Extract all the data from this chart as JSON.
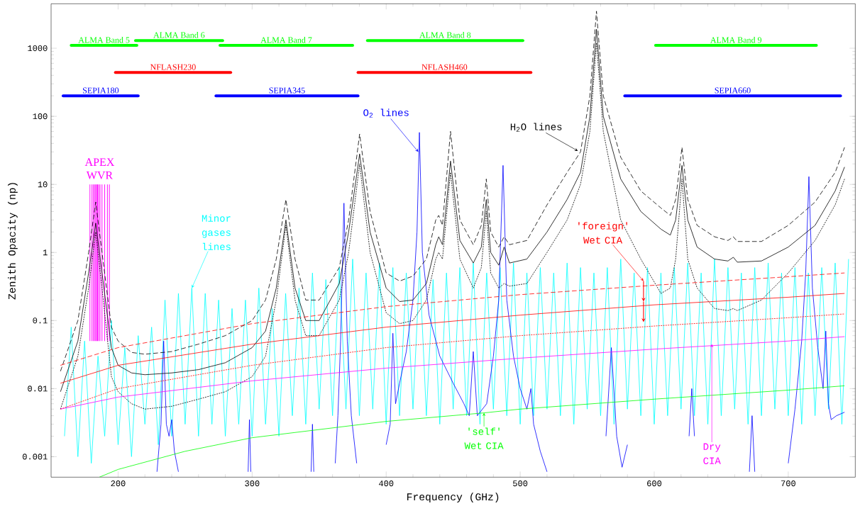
{
  "chart_data": {
    "type": "line",
    "xlabel": "Frequency (GHz)",
    "ylabel": "Zenith Opacity (np)",
    "log": true,
    "xlim": [
      150,
      750
    ],
    "ylim": [
      0.0005,
      4500
    ],
    "xticks": [
      200,
      300,
      400,
      500,
      600,
      700
    ],
    "yticks": [
      0.001,
      0.01,
      0.1,
      1,
      10,
      100,
      1000
    ],
    "x": [
      157,
      170,
      178,
      183.3,
      188,
      195,
      200,
      210,
      220,
      240,
      260,
      280,
      300,
      310,
      318,
      325.2,
      332,
      340,
      350,
      365,
      372,
      380.2,
      388,
      400,
      410,
      420,
      430,
      437,
      439.2,
      442,
      448,
      455,
      465,
      471,
      474.7,
      478,
      484,
      488,
      492,
      505,
      520,
      535,
      545,
      552,
      556.9,
      562,
      575,
      590,
      605,
      612,
      616,
      620.7,
      625,
      632,
      645,
      655,
      659,
      662,
      680,
      700,
      720,
      735,
      742
    ],
    "series": [
      {
        "color": "#00ffff",
        "x": [
          160,
          165,
          170,
          175,
          180,
          185,
          190,
          195,
          200,
          205,
          210,
          215,
          220,
          225,
          230,
          235,
          240,
          245,
          250,
          255,
          260,
          265,
          270,
          275,
          280,
          285,
          290,
          295,
          300,
          305,
          310,
          315,
          320,
          325,
          330,
          335,
          340,
          345,
          350,
          355,
          360,
          365,
          370,
          375,
          380,
          385,
          390,
          395,
          400,
          405,
          410,
          415,
          420,
          425,
          430,
          435,
          440,
          445,
          450,
          455,
          460,
          465,
          470,
          475,
          480,
          485,
          490,
          495,
          500,
          505,
          510,
          515,
          520,
          525,
          530,
          535,
          540,
          545,
          550,
          555,
          560,
          565,
          570,
          575,
          580,
          585,
          590,
          595,
          600,
          605,
          610,
          615,
          620,
          625,
          630,
          635,
          640,
          645,
          650,
          655,
          660,
          665,
          670,
          675,
          680,
          685,
          690,
          695,
          700,
          705,
          710,
          715,
          720,
          725,
          730,
          735,
          740,
          745
        ],
        "values": [
          0.002,
          0.08,
          0.001,
          0.05,
          0.0008,
          0.03,
          0.002,
          0.1,
          0.0015,
          0.04,
          0.001,
          0.06,
          0.003,
          0.08,
          0.0015,
          0.2,
          0.002,
          0.25,
          0.003,
          0.3,
          0.002,
          0.25,
          0.003,
          0.2,
          0.002,
          0.15,
          0.003,
          0.2,
          0.002,
          0.3,
          0.003,
          0.15,
          0.002,
          0.25,
          0.004,
          0.3,
          0.003,
          0.5,
          0.005,
          0.4,
          0.004,
          0.6,
          0.005,
          0.8,
          0.004,
          0.5,
          0.005,
          0.7,
          0.003,
          0.6,
          0.004,
          0.5,
          0.005,
          0.6,
          0.004,
          0.4,
          0.003,
          0.5,
          0.005,
          0.6,
          0.004,
          0.7,
          0.003,
          0.5,
          0.005,
          0.6,
          0.004,
          0.7,
          0.003,
          0.5,
          0.004,
          0.6,
          0.005,
          0.5,
          0.004,
          0.7,
          0.003,
          0.6,
          0.005,
          0.5,
          0.004,
          0.6,
          0.003,
          0.8,
          0.005,
          0.5,
          0.004,
          0.6,
          0.003,
          0.5,
          0.004,
          0.6,
          0.005,
          0.7,
          0.004,
          0.5,
          0.003,
          0.8,
          0.004,
          0.6,
          0.005,
          0.5,
          0.003,
          0.6,
          0.004,
          0.7,
          0.005,
          0.5,
          0.004,
          0.6,
          0.003,
          0.5,
          0.004,
          0.6,
          0.005,
          0.7,
          0.003,
          0.8
        ]
      },
      {
        "color": "#0000ff",
        "x": [
          229,
          232,
          234,
          236,
          238,
          240,
          242,
          245,
          250,
          296,
          297,
          298,
          299,
          300,
          343,
          344,
          345,
          346,
          347,
          358,
          362,
          364,
          366,
          368.5,
          371,
          374,
          378,
          382,
          396,
          400,
          403,
          405,
          407,
          410,
          415,
          420,
          423,
          424.8,
          427,
          432,
          440,
          450,
          458,
          462,
          465,
          468,
          475,
          480,
          484,
          487.2,
          490,
          495,
          500,
          505,
          508,
          510,
          515,
          520,
          525,
          560,
          564,
          568,
          572,
          576,
          580,
          584,
          620,
          626,
          628,
          630,
          636,
          668,
          671,
          673,
          675,
          678,
          695,
          700,
          705,
          710,
          713,
          715.4,
          718,
          722,
          726,
          728,
          730,
          732,
          736,
          742
        ],
        "values": [
          0.0006,
          0.003,
          0.05,
          0.003,
          0.002,
          0.0035,
          0.0012,
          0.0006,
          null,
          null,
          0.0006,
          0.0035,
          0.0006,
          null,
          null,
          0.0006,
          0.003,
          0.0006,
          null,
          null,
          0.0008,
          0.004,
          0.05,
          5.3,
          0.05,
          0.004,
          0.0008,
          null,
          null,
          0.0015,
          0.003,
          0.065,
          0.006,
          0.012,
          0.035,
          0.2,
          2,
          58,
          1,
          0.12,
          0.03,
          0.012,
          0.006,
          0.004,
          0.035,
          0.004,
          0.006,
          0.03,
          0.2,
          19,
          0.2,
          0.03,
          0.01,
          0.005,
          0.01,
          0.003,
          0.0012,
          0.0006,
          null,
          null,
          0.002,
          0.04,
          0.002,
          0.0007,
          0.0015,
          null,
          null,
          0.002,
          0.01,
          0.002,
          null,
          null,
          0.0006,
          0.004,
          0.0006,
          null,
          null,
          0.0008,
          0.005,
          0.05,
          0.5,
          13,
          0.3,
          0.04,
          0.01,
          0.07,
          0.006,
          0.0035,
          0.004,
          0.0045
        ]
      },
      {
        "color": "#000000",
        "line_style": "solid",
        "values": [
          0.009,
          0.05,
          0.5,
          2.7,
          0.5,
          0.04,
          0.022,
          0.017,
          0.016,
          0.017,
          0.019,
          0.024,
          0.04,
          0.07,
          0.3,
          3,
          0.3,
          0.1,
          0.1,
          0.35,
          2,
          28,
          2,
          0.3,
          0.19,
          0.2,
          0.35,
          1.3,
          1.7,
          1.3,
          22,
          1.5,
          0.7,
          1.2,
          6,
          1,
          0.65,
          1.2,
          0.7,
          0.8,
          2,
          6,
          15,
          100,
          1900,
          100,
          12,
          4,
          2.2,
          1.8,
          3,
          19,
          3,
          1.2,
          0.8,
          0.75,
          0.85,
          0.72,
          0.75,
          1.2,
          2.5,
          8,
          18
        ]
      },
      {
        "color": "#000000",
        "line_style": "dashed",
        "values": [
          0.018,
          0.1,
          1,
          5.5,
          1,
          0.08,
          0.05,
          0.034,
          0.032,
          0.035,
          0.045,
          0.06,
          0.1,
          0.2,
          0.8,
          6,
          0.8,
          0.2,
          0.2,
          0.6,
          3,
          55,
          4,
          0.5,
          0.38,
          0.45,
          0.8,
          3,
          3.5,
          2.5,
          60,
          3,
          1.3,
          2.5,
          12,
          2,
          1.2,
          1.7,
          1.3,
          1.5,
          5,
          15,
          30,
          200,
          3500,
          200,
          25,
          8,
          4.5,
          3.5,
          6,
          35,
          6,
          2.5,
          1.7,
          1.5,
          1.7,
          1.45,
          1.45,
          2.5,
          5.5,
          15,
          35
        ]
      },
      {
        "color": "#000000",
        "line_style": "dotted",
        "values": [
          0.005,
          0.03,
          0.3,
          2,
          0.3,
          0.015,
          0.009,
          0.006,
          0.005,
          0.0055,
          0.007,
          0.009,
          0.015,
          0.03,
          0.2,
          2.5,
          0.2,
          0.06,
          0.06,
          0.2,
          1,
          20,
          1,
          0.13,
          0.09,
          0.1,
          0.2,
          0.8,
          1,
          0.8,
          15,
          0.8,
          0.3,
          0.6,
          4,
          0.5,
          0.3,
          0.35,
          0.32,
          0.35,
          1,
          3,
          10,
          60,
          1200,
          60,
          3,
          0.8,
          0.25,
          0.3,
          0.8,
          12,
          0.8,
          0.3,
          0.15,
          0.14,
          0.15,
          0.14,
          0.2,
          0.5,
          1.5,
          5,
          12
        ]
      },
      {
        "color": "#ff0000",
        "line_style": "solid",
        "x": [
          157,
          200,
          300,
          400,
          500,
          600,
          700,
          742
        ],
        "values": [
          0.012,
          0.022,
          0.045,
          0.08,
          0.12,
          0.17,
          0.22,
          0.25
        ]
      },
      {
        "color": "#ff0000",
        "line_style": "dashed",
        "x": [
          157,
          200,
          300,
          400,
          500,
          600,
          700,
          742
        ],
        "values": [
          0.022,
          0.04,
          0.09,
          0.16,
          0.24,
          0.33,
          0.44,
          0.5
        ]
      },
      {
        "color": "#ff0000",
        "line_style": "dotted",
        "x": [
          157,
          200,
          300,
          400,
          500,
          600,
          700,
          742
        ],
        "values": [
          0.005,
          0.01,
          0.022,
          0.04,
          0.06,
          0.083,
          0.11,
          0.125
        ]
      },
      {
        "color": "#ff00ff",
        "x": [
          157,
          200,
          300,
          400,
          500,
          600,
          700,
          742
        ],
        "values": [
          0.005,
          0.0075,
          0.013,
          0.02,
          0.028,
          0.038,
          0.05,
          0.058
        ]
      },
      {
        "color": "#00ff00",
        "x": [
          186,
          200,
          250,
          300,
          400,
          473,
          500,
          600,
          700,
          742
        ],
        "values": [
          0.0005,
          0.00065,
          0.0012,
          0.0019,
          0.0033,
          0.0044,
          0.005,
          0.007,
          0.0095,
          0.011
        ]
      },
      {
        "type": "bar",
        "name": "APEX WVR",
        "color": "#ff00ff",
        "x": [
          179,
          180.5,
          181.5,
          182.5,
          183.3,
          184,
          184.7,
          185.5,
          186.5,
          188,
          190,
          192,
          193.5
        ],
        "base": [
          0.05,
          0.05,
          0.05,
          0.05,
          0.05,
          0.05,
          0.05,
          0.05,
          0.05,
          0.05,
          0.05,
          0.05,
          0.05
        ],
        "values": [
          9.95,
          9.95,
          9.95,
          9.95,
          9.95,
          9.95,
          9.95,
          9.95,
          9.95,
          9.95,
          9.95,
          9.95,
          9.95
        ]
      },
      {
        "name": "ALMA Band 5",
        "color": "#00ff00",
        "x": [
          165,
          214
        ],
        "values": [
          1100,
          1100
        ]
      },
      {
        "name": "ALMA Band 6",
        "color": "#00ff00",
        "x": [
          213,
          278
        ],
        "values": [
          1300,
          1300
        ]
      },
      {
        "name": "ALMA Band 7",
        "color": "#00ff00",
        "x": [
          276,
          375
        ],
        "values": [
          1100,
          1100
        ]
      },
      {
        "name": "ALMA Band 8",
        "color": "#00ff00",
        "x": [
          386,
          502
        ],
        "values": [
          1300,
          1300
        ]
      },
      {
        "name": "ALMA Band 9",
        "color": "#00ff00",
        "x": [
          601,
          721
        ],
        "values": [
          1100,
          1100
        ]
      },
      {
        "name": "NFLASH230",
        "color": "#ff0000",
        "x": [
          198,
          284
        ],
        "values": [
          440,
          440
        ]
      },
      {
        "name": "NFLASH460",
        "color": "#ff0000",
        "x": [
          379,
          508
        ],
        "values": [
          440,
          440
        ]
      },
      {
        "name": "SEPIA180",
        "color": "#0000ff",
        "x": [
          159,
          215
        ],
        "values": [
          200,
          200
        ]
      },
      {
        "name": "SEPIA345",
        "color": "#0000ff",
        "x": [
          273,
          379
        ],
        "values": [
          200,
          200
        ]
      },
      {
        "name": "SEPIA660",
        "color": "#0000ff",
        "x": [
          578,
          739
        ],
        "values": [
          200,
          200
        ]
      }
    ],
    "annotations": [
      {
        "text": "O$_{2}$ lines",
        "x": 424,
        "y": 30
      },
      {
        "text": "H$_{2}$O lines",
        "x": 543,
        "y": 31
      },
      {
        "text": "Minor gases lines",
        "x": 255,
        "y": 0.3
      },
      {
        "text": "'foreign' Wet CIA",
        "x": 592,
        "y": 0.38
      },
      {
        "text": "'self' Wet CIA",
        "x": 473,
        "y": 0.0044
      },
      {
        "text": "Dry CIA",
        "x": 643,
        "y": 0.045
      }
    ]
  }
}
